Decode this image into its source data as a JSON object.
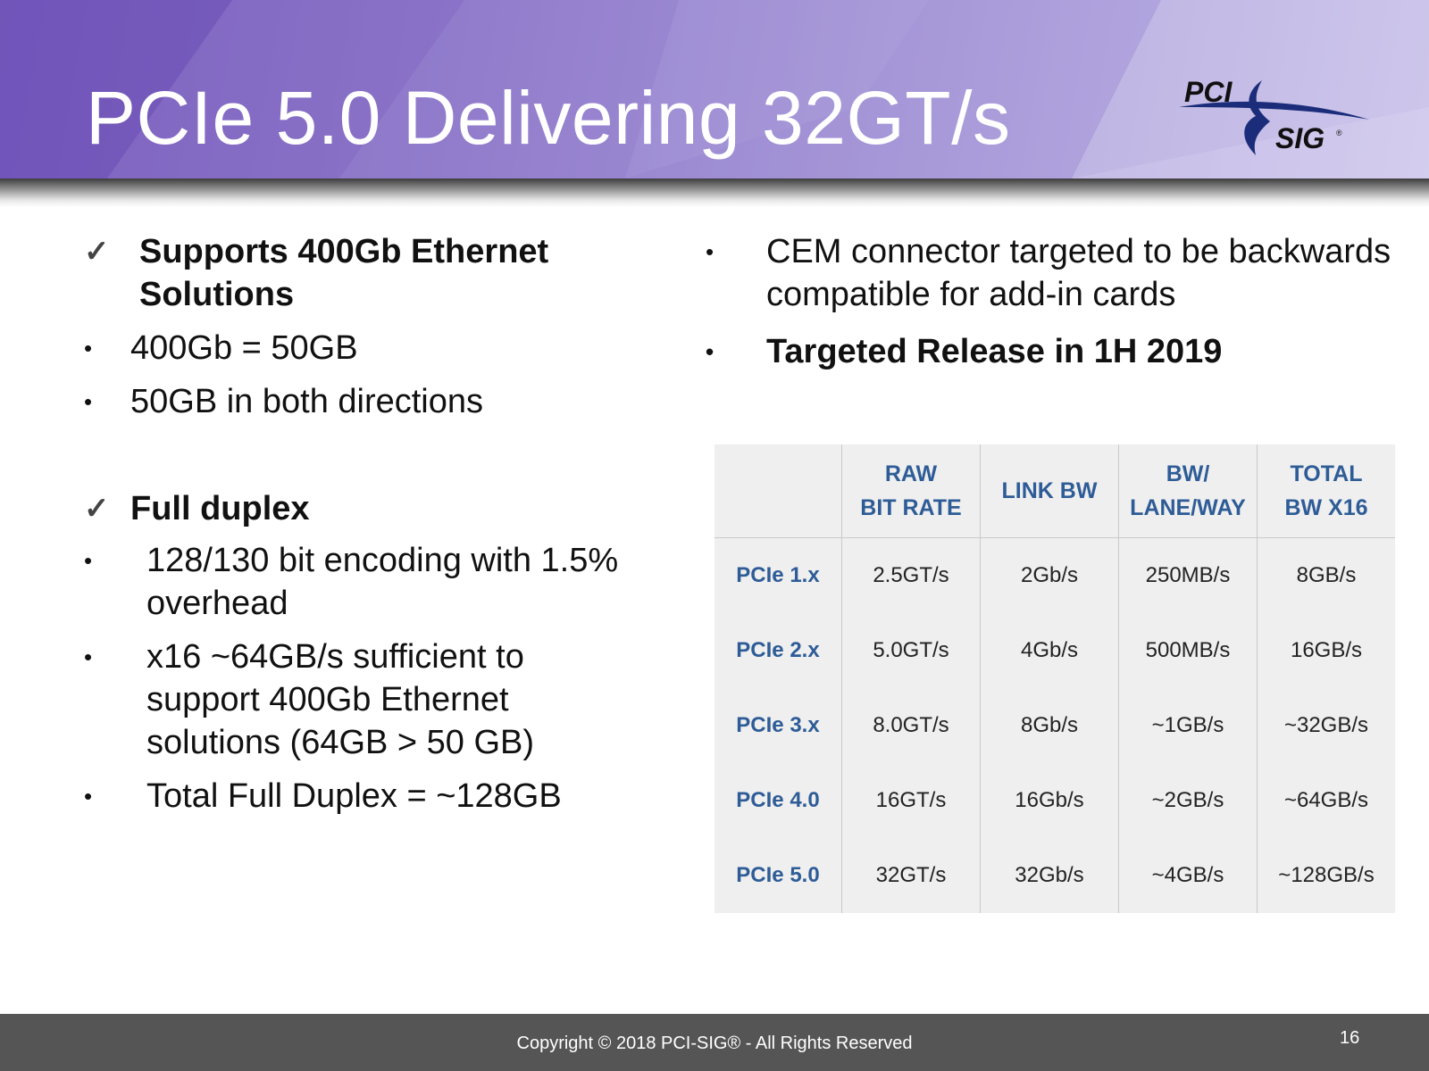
{
  "header": {
    "title": "PCIe 5.0 Delivering 32GT/s",
    "logo_text_top": "PCI",
    "logo_text_bottom": "SIG",
    "logo_mark": "®"
  },
  "left": {
    "section1": {
      "heading": "Supports 400Gb Ethernet Solutions",
      "bullets": [
        "400Gb = 50GB",
        "50GB in both directions"
      ]
    },
    "section2": {
      "heading": "Full duplex",
      "bullets": [
        "128/130 bit encoding with 1.5% overhead",
        "x16 ~64GB/s sufficient to support 400Gb Ethernet solutions (64GB > 50 GB)",
        "Total Full Duplex = ~128GB"
      ]
    }
  },
  "right": {
    "bullets": [
      "CEM connector targeted to be backwards compatible for add-in cards",
      "Targeted Release in 1H 2019"
    ]
  },
  "markers": {
    "check": "✓",
    "bullet": "•"
  },
  "table": {
    "headers": [
      {
        "line1": "",
        "line2": ""
      },
      {
        "line1": "RAW",
        "line2": "BIT RATE"
      },
      {
        "line1": "LINK BW",
        "line2": ""
      },
      {
        "line1": "BW/",
        "line2": "LANE/WAY"
      },
      {
        "line1": "TOTAL",
        "line2": "BW X16"
      }
    ],
    "rows": [
      [
        "PCIe 1.x",
        "2.5GT/s",
        "2Gb/s",
        "250MB/s",
        "8GB/s"
      ],
      [
        "PCIe 2.x",
        "5.0GT/s",
        "4Gb/s",
        "500MB/s",
        "16GB/s"
      ],
      [
        "PCIe 3.x",
        "8.0GT/s",
        "8Gb/s",
        "~1GB/s",
        "~32GB/s"
      ],
      [
        "PCIe 4.0",
        "16GT/s",
        "16Gb/s",
        "~2GB/s",
        "~64GB/s"
      ],
      [
        "PCIe 5.0",
        "32GT/s",
        "32Gb/s",
        "~4GB/s",
        "~128GB/s"
      ]
    ]
  },
  "footer": {
    "copyright": "Copyright © 2018 PCI-SIG® - All Rights Reserved",
    "page_number": "16"
  },
  "colors": {
    "header_purple": "#7a5fbf",
    "table_header_blue": "#2e5c97",
    "footer_gray": "#555555"
  }
}
